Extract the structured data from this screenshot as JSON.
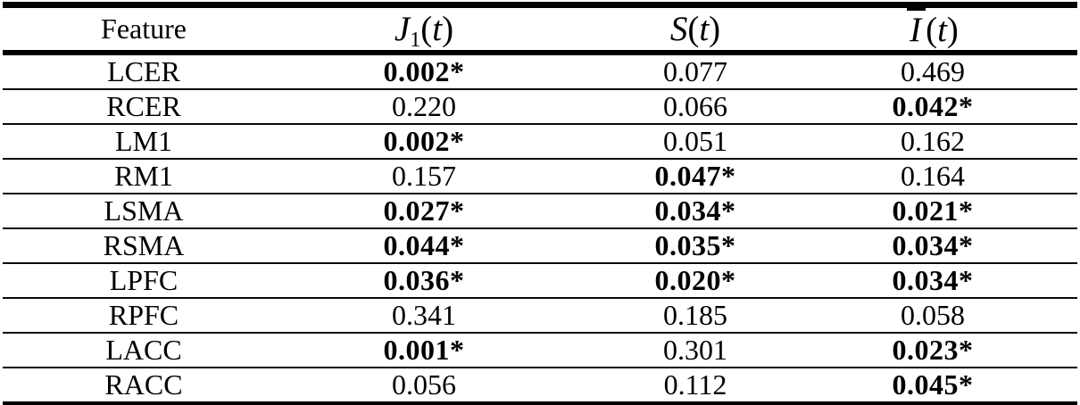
{
  "table": {
    "header": {
      "feature": "Feature",
      "j1": {
        "base": "J",
        "sub": "1",
        "lp": "(",
        "arg": "t",
        "rp": ")"
      },
      "s": {
        "base": "S",
        "lp": "(",
        "arg": "t",
        "rp": ")"
      },
      "ibar": {
        "base": "I",
        "lp": "(",
        "arg": "t",
        "rp": ")"
      }
    },
    "rows": [
      [
        "LCER",
        "0.002*",
        "0.077",
        "0.469"
      ],
      [
        "RCER",
        "0.220",
        "0.066",
        "0.042*"
      ],
      [
        "LM1",
        "0.002*",
        "0.051",
        "0.162"
      ],
      [
        "RM1",
        "0.157",
        "0.047*",
        "0.164"
      ],
      [
        "LSMA",
        "0.027*",
        "0.034*",
        "0.021*"
      ],
      [
        "RSMA",
        "0.044*",
        "0.035*",
        "0.034*"
      ],
      [
        "LPFC",
        "0.036*",
        "0.020*",
        "0.034*"
      ],
      [
        "RPFC",
        "0.341",
        "0.185",
        "0.058"
      ],
      [
        "LACC",
        "0.001*",
        "0.301",
        "0.023*"
      ],
      [
        "RACC",
        "0.056",
        "0.112",
        "0.045*"
      ]
    ],
    "significance_marker": "*",
    "colors": {
      "text": "#000000",
      "rule": "#000000",
      "background": "#ffffff"
    }
  }
}
